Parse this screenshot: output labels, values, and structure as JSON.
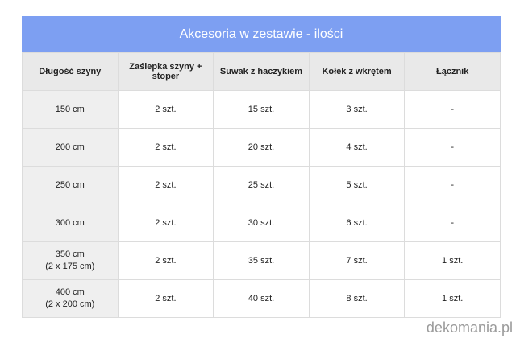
{
  "title": "Akcesoria w zestawie - ilości",
  "table": {
    "header": [
      "Długość szyny",
      "Zaślepka szyny + stoper",
      "Suwak z haczykiem",
      "Kołek z wkrętem",
      "Łącznik"
    ],
    "rows": [
      [
        [
          "150 cm"
        ],
        "2 szt.",
        "15 szt.",
        "3 szt.",
        "-"
      ],
      [
        [
          "200 cm"
        ],
        "2 szt.",
        "20 szt.",
        "4 szt.",
        "-"
      ],
      [
        [
          "250 cm"
        ],
        "2 szt.",
        "25 szt.",
        "5 szt.",
        "-"
      ],
      [
        [
          "300 cm"
        ],
        "2 szt.",
        "30 szt.",
        "6 szt.",
        "-"
      ],
      [
        [
          "350 cm",
          "(2 x 175 cm)"
        ],
        "2 szt.",
        "35 szt.",
        "7 szt.",
        "1 szt."
      ],
      [
        [
          "400 cm",
          "(2 x 200 cm)"
        ],
        "2 szt.",
        "40 szt.",
        "8 szt.",
        "1 szt."
      ]
    ]
  },
  "watermark": "dekomania.pl"
}
